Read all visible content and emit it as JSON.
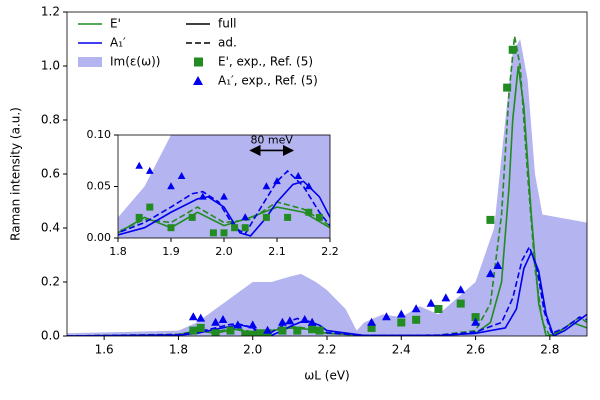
{
  "chart_data": {
    "type": "line",
    "x_label": "ωL (eV)",
    "y_label": "Raman intensity (a.u.)",
    "xlim": [
      1.5,
      2.9
    ],
    "ylim": [
      0,
      1.2
    ],
    "xticks": [
      1.6,
      1.8,
      {
        "value": 2,
        "label": "2.0"
      },
      2.2,
      2.4,
      2.6,
      2.8
    ],
    "yticks": [
      {
        "value": 0,
        "label": "0.0"
      },
      0.2,
      0.4,
      0.6,
      0.8,
      {
        "value": 1,
        "label": "1.0"
      },
      1.2
    ],
    "area": {
      "name": "Im(ε(ω))",
      "color": "#b4b4f0",
      "x": [
        1.5,
        1.8,
        1.85,
        1.9,
        1.95,
        2.0,
        2.05,
        2.1,
        2.13,
        2.17,
        2.2,
        2.25,
        2.28,
        2.3,
        2.35,
        2.4,
        2.45,
        2.5,
        2.55,
        2.6,
        2.65,
        2.68,
        2.7,
        2.72,
        2.74,
        2.76,
        2.78,
        2.82,
        2.86,
        2.9
      ],
      "values": [
        0.01,
        0.02,
        0.05,
        0.1,
        0.15,
        0.2,
        0.2,
        0.22,
        0.23,
        0.2,
        0.17,
        0.1,
        0.02,
        0.05,
        0.08,
        0.07,
        0.11,
        0.08,
        0.14,
        0.2,
        0.4,
        0.8,
        1.05,
        1.1,
        0.95,
        0.6,
        0.45,
        0.44,
        0.43,
        0.42
      ]
    },
    "series": [
      {
        "name": "E'",
        "color": "#228b22",
        "style": "solid",
        "x": [
          1.5,
          1.8,
          1.85,
          1.9,
          1.95,
          2.0,
          2.05,
          2.1,
          2.15,
          2.2,
          2.3,
          2.5,
          2.6,
          2.64,
          2.67,
          2.69,
          2.7,
          2.715,
          2.73,
          2.75,
          2.77,
          2.79,
          2.82,
          2.86,
          2.9
        ],
        "values": [
          0,
          0.005,
          0.02,
          0.01,
          0.025,
          0.012,
          0.02,
          0.03,
          0.025,
          0.01,
          0.002,
          0.002,
          0.01,
          0.05,
          0.2,
          0.55,
          0.8,
          1.0,
          0.85,
          0.45,
          0.12,
          0,
          0.01,
          0.05,
          0.03
        ]
      },
      {
        "name": "E'",
        "color": "#228b22",
        "style": "dashed",
        "x": [
          1.5,
          1.8,
          1.85,
          1.9,
          1.95,
          2.0,
          2.05,
          2.1,
          2.15,
          2.2,
          2.3,
          2.5,
          2.6,
          2.64,
          2.67,
          2.69,
          2.705,
          2.72,
          2.74,
          2.76,
          2.78,
          2.8,
          2.84,
          2.88,
          2.9
        ],
        "values": [
          0,
          0.006,
          0.018,
          0.015,
          0.03,
          0.015,
          0.018,
          0.035,
          0.028,
          0.012,
          0.002,
          0.003,
          0.02,
          0.12,
          0.45,
          0.9,
          1.11,
          1.0,
          0.6,
          0.25,
          0.05,
          0,
          0.03,
          0.07,
          0.05
        ]
      },
      {
        "name": "A₁′",
        "color": "#0000ee",
        "style": "solid",
        "x": [
          1.5,
          1.8,
          1.85,
          1.9,
          1.95,
          1.97,
          2.0,
          2.03,
          2.05,
          2.08,
          2.1,
          2.13,
          2.15,
          2.18,
          2.2,
          2.3,
          2.5,
          2.6,
          2.68,
          2.71,
          2.73,
          2.75,
          2.77,
          2.79,
          2.81,
          2.84,
          2.88,
          2.9
        ],
        "values": [
          0,
          0.003,
          0.01,
          0.025,
          0.038,
          0.04,
          0.03,
          0.005,
          0.002,
          0.02,
          0.035,
          0.052,
          0.055,
          0.04,
          0.02,
          0.002,
          0.002,
          0.01,
          0.03,
          0.1,
          0.25,
          0.31,
          0.24,
          0.08,
          0,
          0.02,
          0.06,
          0.08
        ]
      },
      {
        "name": "A₁′",
        "color": "#0000ee",
        "style": "dashed",
        "x": [
          1.5,
          1.8,
          1.85,
          1.9,
          1.94,
          1.96,
          1.99,
          2.02,
          2.04,
          2.07,
          2.1,
          2.12,
          2.15,
          2.18,
          2.2,
          2.3,
          2.5,
          2.6,
          2.67,
          2.7,
          2.725,
          2.745,
          2.765,
          2.785,
          2.805,
          2.84,
          2.88,
          2.9
        ],
        "values": [
          0,
          0.005,
          0.015,
          0.03,
          0.043,
          0.045,
          0.035,
          0.01,
          0.004,
          0.03,
          0.055,
          0.065,
          0.05,
          0.025,
          0.012,
          0.002,
          0.003,
          0.015,
          0.05,
          0.14,
          0.28,
          0.33,
          0.25,
          0.09,
          0.01,
          0.03,
          0.07,
          0.06
        ]
      }
    ],
    "scatter": [
      {
        "name": "E', exp., Ref. (5)",
        "color": "#228b22",
        "marker": "square",
        "x": [
          1.84,
          1.86,
          1.9,
          1.94,
          1.98,
          2.0,
          2.02,
          2.04,
          2.08,
          2.12,
          2.16,
          2.18,
          2.32,
          2.4,
          2.44,
          2.5,
          2.56,
          2.6,
          2.64,
          2.685,
          2.7
        ],
        "values": [
          0.02,
          0.03,
          0.01,
          0.02,
          0.005,
          0.005,
          0.01,
          0.01,
          0.02,
          0.02,
          0.025,
          0.02,
          0.03,
          0.05,
          0.06,
          0.1,
          0.12,
          0.07,
          0.43,
          0.92,
          1.06
        ]
      },
      {
        "name": "A₁′, exp., Ref. (5)",
        "color": "#0000ee",
        "marker": "triangle",
        "x": [
          1.84,
          1.86,
          1.9,
          1.92,
          1.96,
          2.0,
          2.04,
          2.08,
          2.1,
          2.14,
          2.16,
          2.32,
          2.36,
          2.4,
          2.44,
          2.48,
          2.52,
          2.56,
          2.6,
          2.64,
          2.66
        ],
        "values": [
          0.07,
          0.065,
          0.05,
          0.06,
          0.04,
          0.04,
          0.02,
          0.05,
          0.055,
          0.06,
          0.05,
          0.05,
          0.07,
          0.08,
          0.1,
          0.12,
          0.14,
          0.17,
          0.05,
          0.23,
          0.26
        ]
      }
    ],
    "style_legend": [
      {
        "name": "full",
        "style": "solid"
      },
      {
        "name": "ad.",
        "style": "dashed"
      }
    ],
    "inset": {
      "xlim": [
        1.8,
        2.2
      ],
      "ylim": [
        0,
        0.1
      ],
      "xticks": [
        1.8,
        1.9,
        {
          "value": 2,
          "label": "2.0"
        },
        2.1,
        2.2
      ],
      "yticks": [
        {
          "value": 0,
          "label": "0.00"
        },
        {
          "value": 0.05,
          "label": "0.05"
        },
        {
          "value": 0.1,
          "label": "0.10"
        }
      ]
    },
    "annotations": [
      {
        "text": "80 meV",
        "x": [
          2.05,
          2.13
        ],
        "y": 0.085
      }
    ]
  }
}
